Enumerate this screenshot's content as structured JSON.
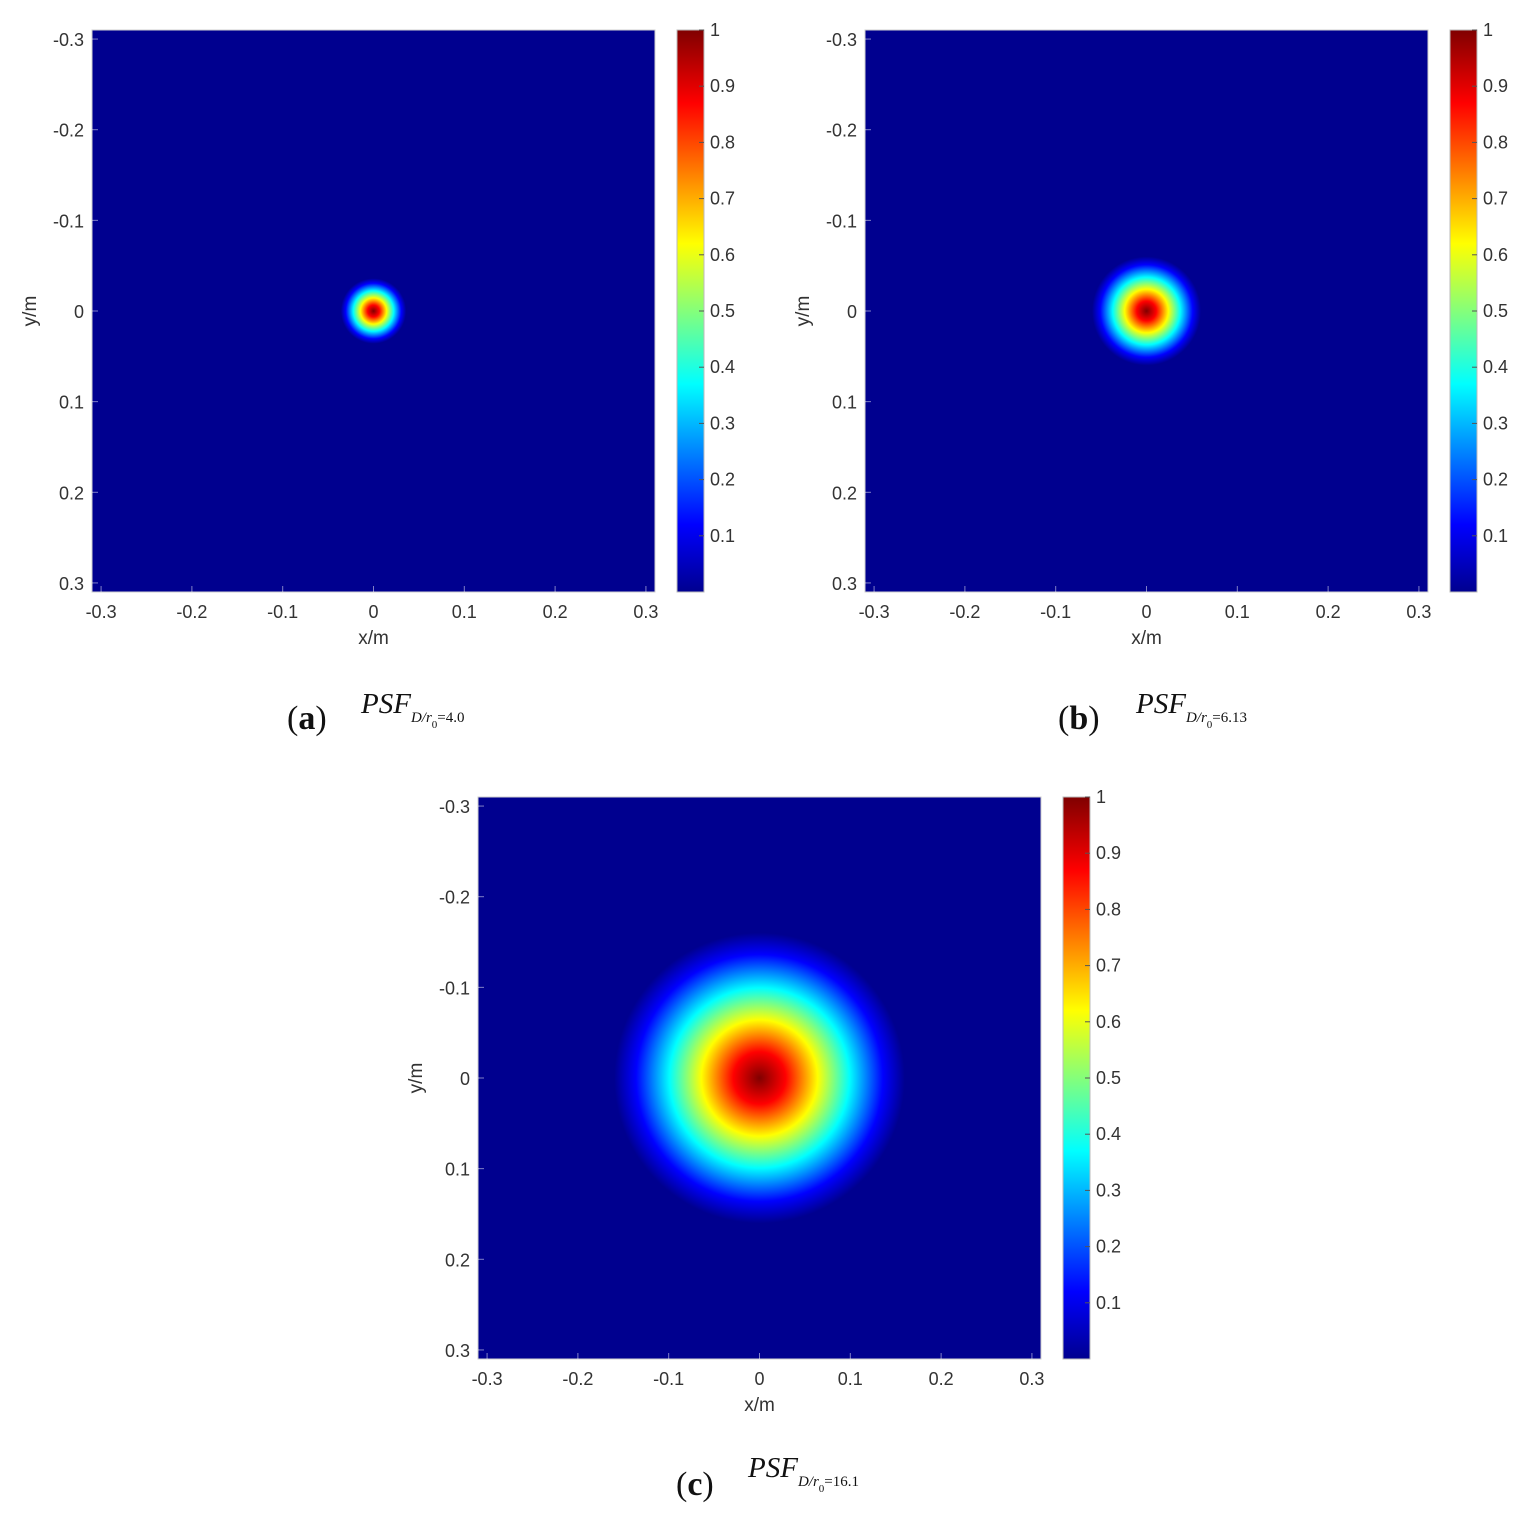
{
  "colormap": [
    "#00008f",
    "#0000ff",
    "#00ffff",
    "#ffff00",
    "#ff0000",
    "#800000"
  ],
  "chart_data": [
    {
      "type": "heatmap",
      "id": "a",
      "panel_letter": "a",
      "psf_main": "PSF",
      "psf_sub_prefix": "D/r",
      "psf_sub_index": "0",
      "psf_sub_suffix": "=4.0",
      "xlabel": "x/m",
      "ylabel": "y/m",
      "xlim": [
        -0.31,
        0.31
      ],
      "ylim": [
        -0.31,
        0.31
      ],
      "y_reversed": true,
      "xticks": [
        "-0.3",
        "-0.2",
        "-0.1",
        "0",
        "0.1",
        "0.2",
        "0.3"
      ],
      "yticks": [
        "-0.3",
        "-0.2",
        "-0.1",
        "0",
        "0.1",
        "0.2",
        "0.3"
      ],
      "colorbar_ticks": [
        "0.1",
        "0.2",
        "0.3",
        "0.4",
        "0.5",
        "0.6",
        "0.7",
        "0.8",
        "0.9",
        "1"
      ],
      "colorbar_range": [
        0,
        1
      ],
      "peak": {
        "x": 0,
        "y": 0,
        "value": 1
      },
      "approx_radius_at_half_max_m": 0.018
    },
    {
      "type": "heatmap",
      "id": "b",
      "panel_letter": "b",
      "psf_main": "PSF",
      "psf_sub_prefix": "D/r",
      "psf_sub_index": "0",
      "psf_sub_suffix": "=6.13",
      "xlabel": "x/m",
      "ylabel": "y/m",
      "xlim": [
        -0.31,
        0.31
      ],
      "ylim": [
        -0.31,
        0.31
      ],
      "y_reversed": true,
      "xticks": [
        "-0.3",
        "-0.2",
        "-0.1",
        "0",
        "0.1",
        "0.2",
        "0.3"
      ],
      "yticks": [
        "-0.3",
        "-0.2",
        "-0.1",
        "0",
        "0.1",
        "0.2",
        "0.3"
      ],
      "colorbar_ticks": [
        "0.1",
        "0.2",
        "0.3",
        "0.4",
        "0.5",
        "0.6",
        "0.7",
        "0.8",
        "0.9",
        "1"
      ],
      "colorbar_range": [
        0,
        1
      ],
      "peak": {
        "x": 0,
        "y": 0,
        "value": 1
      },
      "approx_radius_at_half_max_m": 0.03
    },
    {
      "type": "heatmap",
      "id": "c",
      "panel_letter": "c",
      "psf_main": "PSF",
      "psf_sub_prefix": "D/r",
      "psf_sub_index": "0",
      "psf_sub_suffix": "=16.1",
      "xlabel": "x/m",
      "ylabel": "y/m",
      "xlim": [
        -0.31,
        0.31
      ],
      "ylim": [
        -0.31,
        0.31
      ],
      "y_reversed": true,
      "xticks": [
        "-0.3",
        "-0.2",
        "-0.1",
        "0",
        "0.1",
        "0.2",
        "0.3"
      ],
      "yticks": [
        "-0.3",
        "-0.2",
        "-0.1",
        "0",
        "0.1",
        "0.2",
        "0.3"
      ],
      "colorbar_ticks": [
        "0.1",
        "0.2",
        "0.3",
        "0.4",
        "0.5",
        "0.6",
        "0.7",
        "0.8",
        "0.9",
        "1"
      ],
      "colorbar_range": [
        0,
        1
      ],
      "peak": {
        "x": 0,
        "y": 0,
        "value": 1
      },
      "approx_radius_at_half_max_m": 0.08
    }
  ]
}
